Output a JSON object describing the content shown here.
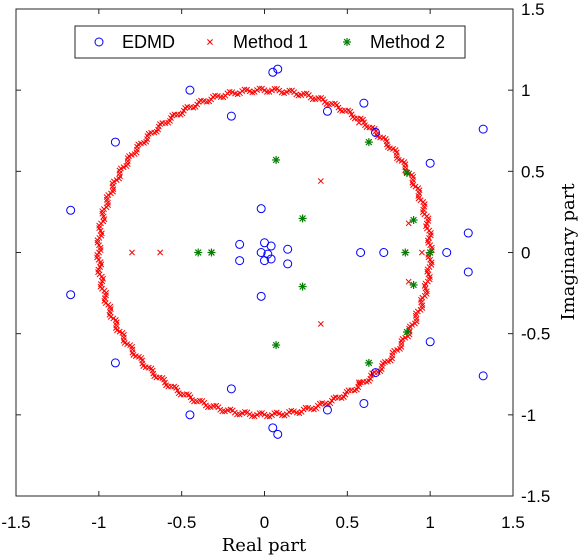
{
  "chart_data": {
    "type": "scatter",
    "xlabel": "Real part",
    "ylabel": "Imaginary part",
    "xlim": [
      -1.5,
      1.5
    ],
    "ylim": [
      -1.5,
      1.5
    ],
    "xticks": [
      "-1.5",
      "-1",
      "-0.5",
      "0",
      "0.5",
      "1",
      "1.5"
    ],
    "yticks": [
      "-1.5",
      "-1",
      "-0.5",
      "0",
      "0.5",
      "1",
      "1.5"
    ],
    "x_tick_values": [
      -1.5,
      -1,
      -0.5,
      0,
      0.5,
      1,
      1.5
    ],
    "y_tick_values": [
      -1.5,
      -1,
      -0.5,
      0,
      0.5,
      1,
      1.5
    ],
    "y_axis_position": "right",
    "grid": false,
    "legend_position": "top",
    "series": [
      {
        "name": "EDMD",
        "marker": "circle",
        "color": "#0000ff",
        "points": [
          [
            0.05,
            1.11
          ],
          [
            0.08,
            1.13
          ],
          [
            -0.45,
            1.0
          ],
          [
            0.6,
            0.92
          ],
          [
            -0.2,
            0.84
          ],
          [
            -0.9,
            0.68
          ],
          [
            0.38,
            0.87
          ],
          [
            0.67,
            0.74
          ],
          [
            1.32,
            0.76
          ],
          [
            1.0,
            0.55
          ],
          [
            -1.17,
            0.26
          ],
          [
            -0.02,
            0.27
          ],
          [
            1.23,
            0.12
          ],
          [
            -0.15,
            0.05
          ],
          [
            0.0,
            0.06
          ],
          [
            0.04,
            0.04
          ],
          [
            0.14,
            0.02
          ],
          [
            0.58,
            0.0
          ],
          [
            0.72,
            0.0
          ],
          [
            1.1,
            0.0
          ],
          [
            -0.02,
            0.0
          ],
          [
            0.02,
            -0.01
          ],
          [
            -0.15,
            -0.05
          ],
          [
            0.0,
            -0.05
          ],
          [
            0.04,
            -0.04
          ],
          [
            0.14,
            -0.07
          ],
          [
            1.23,
            -0.12
          ],
          [
            -0.02,
            -0.27
          ],
          [
            -1.17,
            -0.26
          ],
          [
            1.0,
            -0.55
          ],
          [
            -0.9,
            -0.68
          ],
          [
            0.67,
            -0.74
          ],
          [
            1.32,
            -0.76
          ],
          [
            -0.2,
            -0.84
          ],
          [
            0.6,
            -0.93
          ],
          [
            0.38,
            -0.97
          ],
          [
            -0.45,
            -1.0
          ],
          [
            0.05,
            -1.08
          ],
          [
            0.08,
            -1.12
          ]
        ]
      },
      {
        "name": "Method 1",
        "marker": "x",
        "color": "#ff0000",
        "points": [
          [
            -0.8,
            0.0
          ],
          [
            -0.63,
            0.0
          ],
          [
            -0.32,
            0.0
          ],
          [
            0.34,
            0.44
          ],
          [
            0.34,
            -0.44
          ],
          [
            0.57,
            0.8
          ],
          [
            0.57,
            -0.8
          ],
          [
            0.87,
            0.18
          ],
          [
            0.87,
            -0.18
          ],
          [
            0.85,
            0.0
          ],
          [
            0.95,
            0.0
          ]
        ]
      },
      {
        "name": "Method 2",
        "marker": "star",
        "color": "#007f00",
        "points": [
          [
            0.07,
            0.57
          ],
          [
            0.07,
            -0.57
          ],
          [
            0.23,
            0.21
          ],
          [
            0.23,
            -0.21
          ],
          [
            -0.4,
            0.0
          ],
          [
            -0.32,
            0.0
          ],
          [
            0.85,
            0.0
          ],
          [
            1.0,
            0.0
          ],
          [
            0.63,
            0.68
          ],
          [
            0.63,
            -0.68
          ],
          [
            0.86,
            0.49
          ],
          [
            0.86,
            -0.49
          ],
          [
            0.9,
            0.2
          ],
          [
            0.9,
            -0.2
          ]
        ]
      }
    ],
    "ring": {
      "series": "Method 1",
      "radius": 1.0,
      "count": 420
    }
  }
}
